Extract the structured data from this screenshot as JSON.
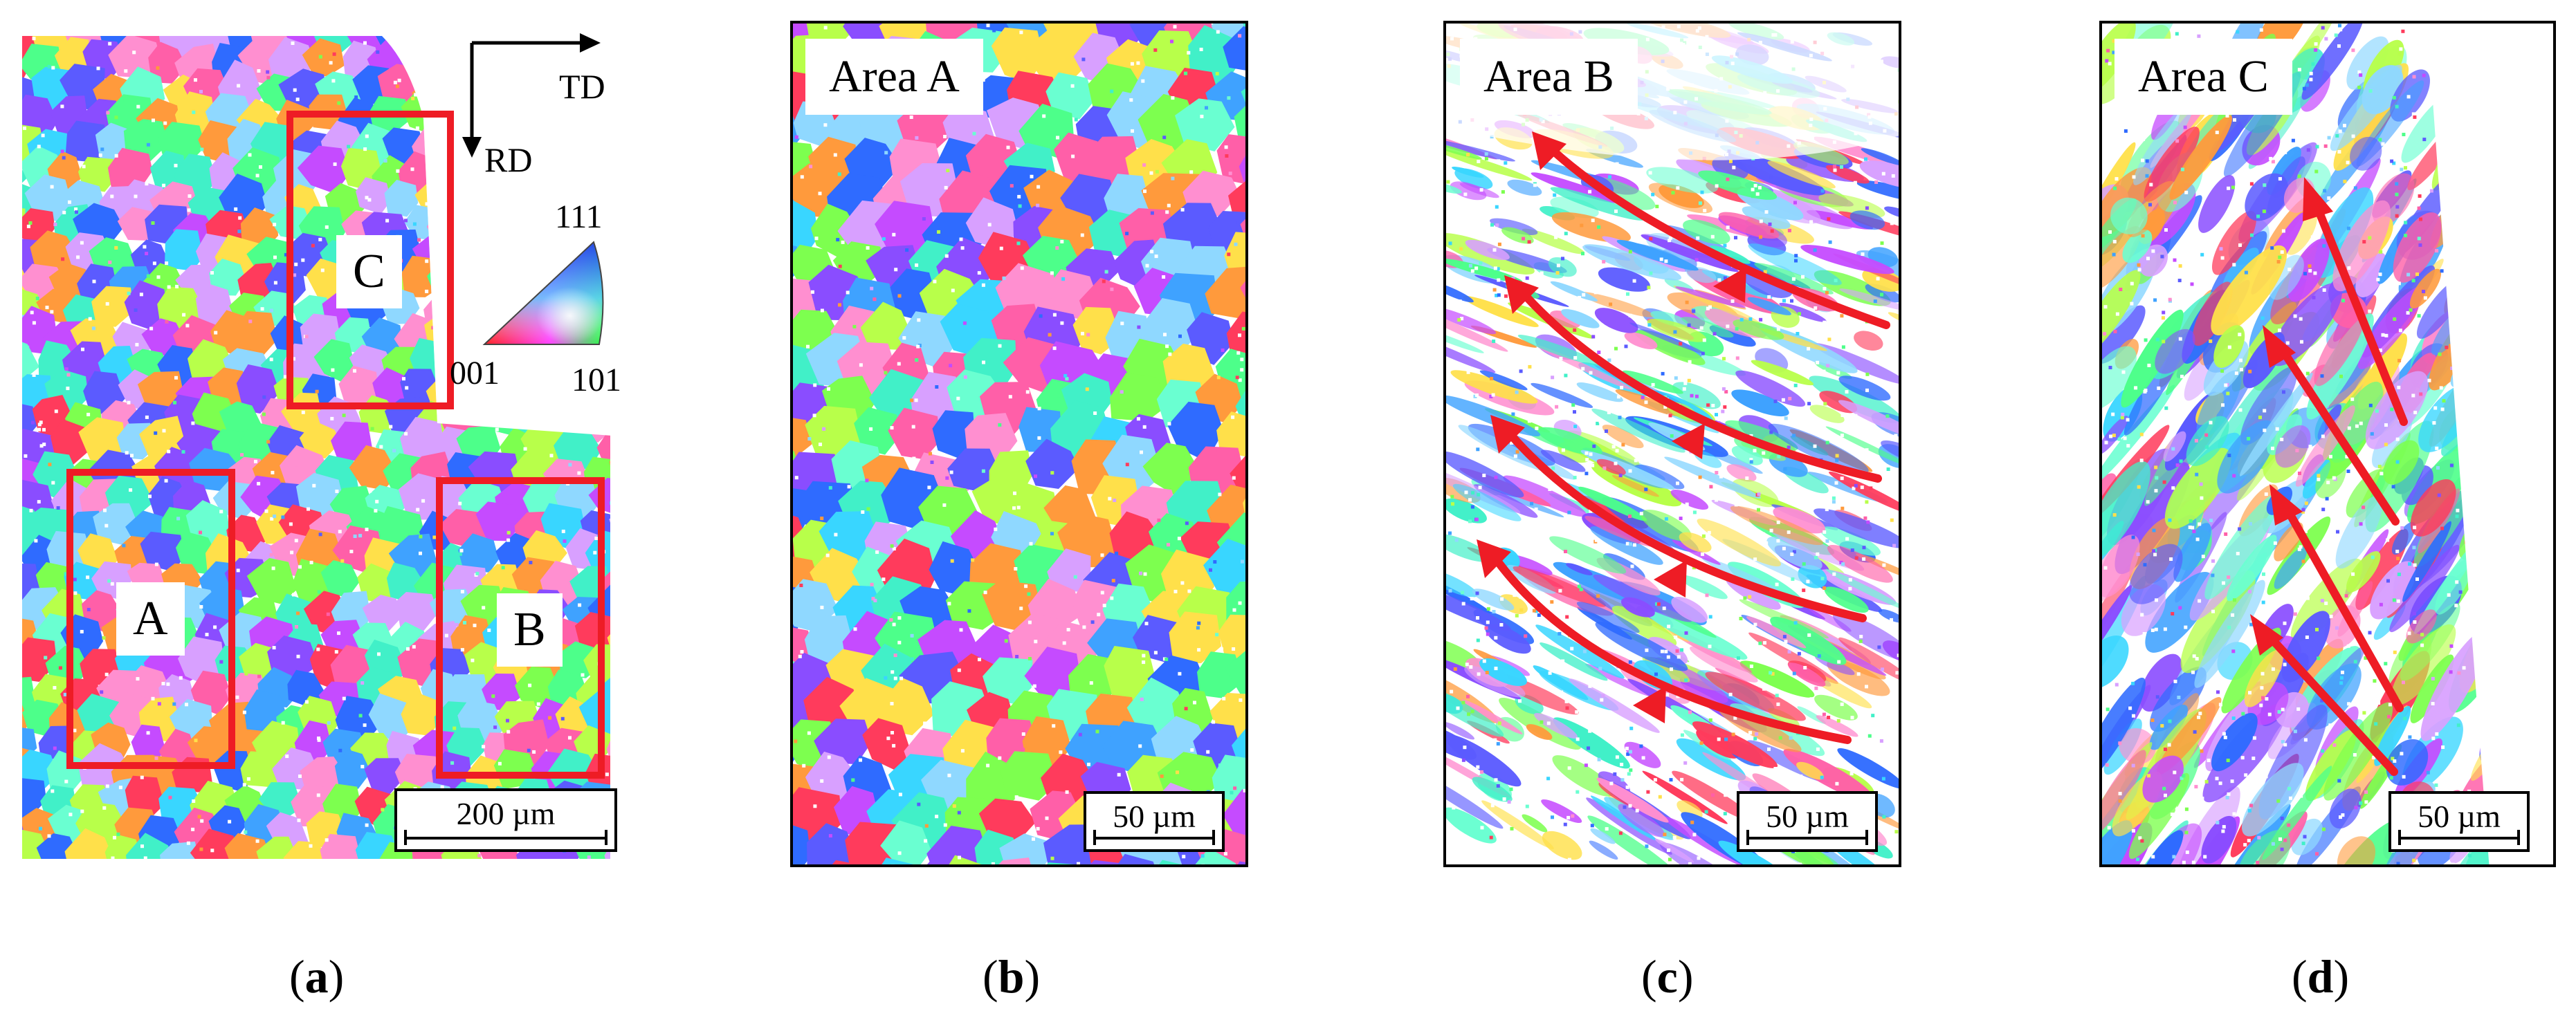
{
  "panel_a": {
    "region_a_label": "A",
    "region_b_label": "B",
    "region_c_label": "C",
    "axis_td_label": "TD",
    "axis_rd_label": "RD",
    "ipf_111_label": "111",
    "ipf_001_label": "001",
    "ipf_101_label": "101",
    "scalebar_text": "200 µm"
  },
  "panel_b": {
    "area_label": "Area A",
    "scalebar_text": "50 µm"
  },
  "panel_c": {
    "area_label": "Area B",
    "scalebar_text": "50 µm"
  },
  "panel_d": {
    "area_label": "Area C",
    "scalebar_text": "50 µm"
  },
  "captions": {
    "a": {
      "open": "(",
      "letter": "a",
      "close": ")"
    },
    "b": {
      "open": "(",
      "letter": "b",
      "close": ")"
    },
    "c": {
      "open": "(",
      "letter": "c",
      "close": ")"
    },
    "d": {
      "open": "(",
      "letter": "d",
      "close": ")"
    }
  },
  "colors": {
    "annotation_red": "#ee1c25",
    "grain_palette": [
      "#ff3b5c",
      "#ff5fa8",
      "#ff8fd0",
      "#c54bff",
      "#8a4dff",
      "#5b5bff",
      "#2f6bff",
      "#3fa2ff",
      "#39d6ff",
      "#41f0c8",
      "#4dff8a",
      "#7dff4f",
      "#b8ff4a",
      "#ffe04a",
      "#ff9a3c",
      "#8fd8ff",
      "#d8a0ff",
      "#6affd1"
    ]
  }
}
